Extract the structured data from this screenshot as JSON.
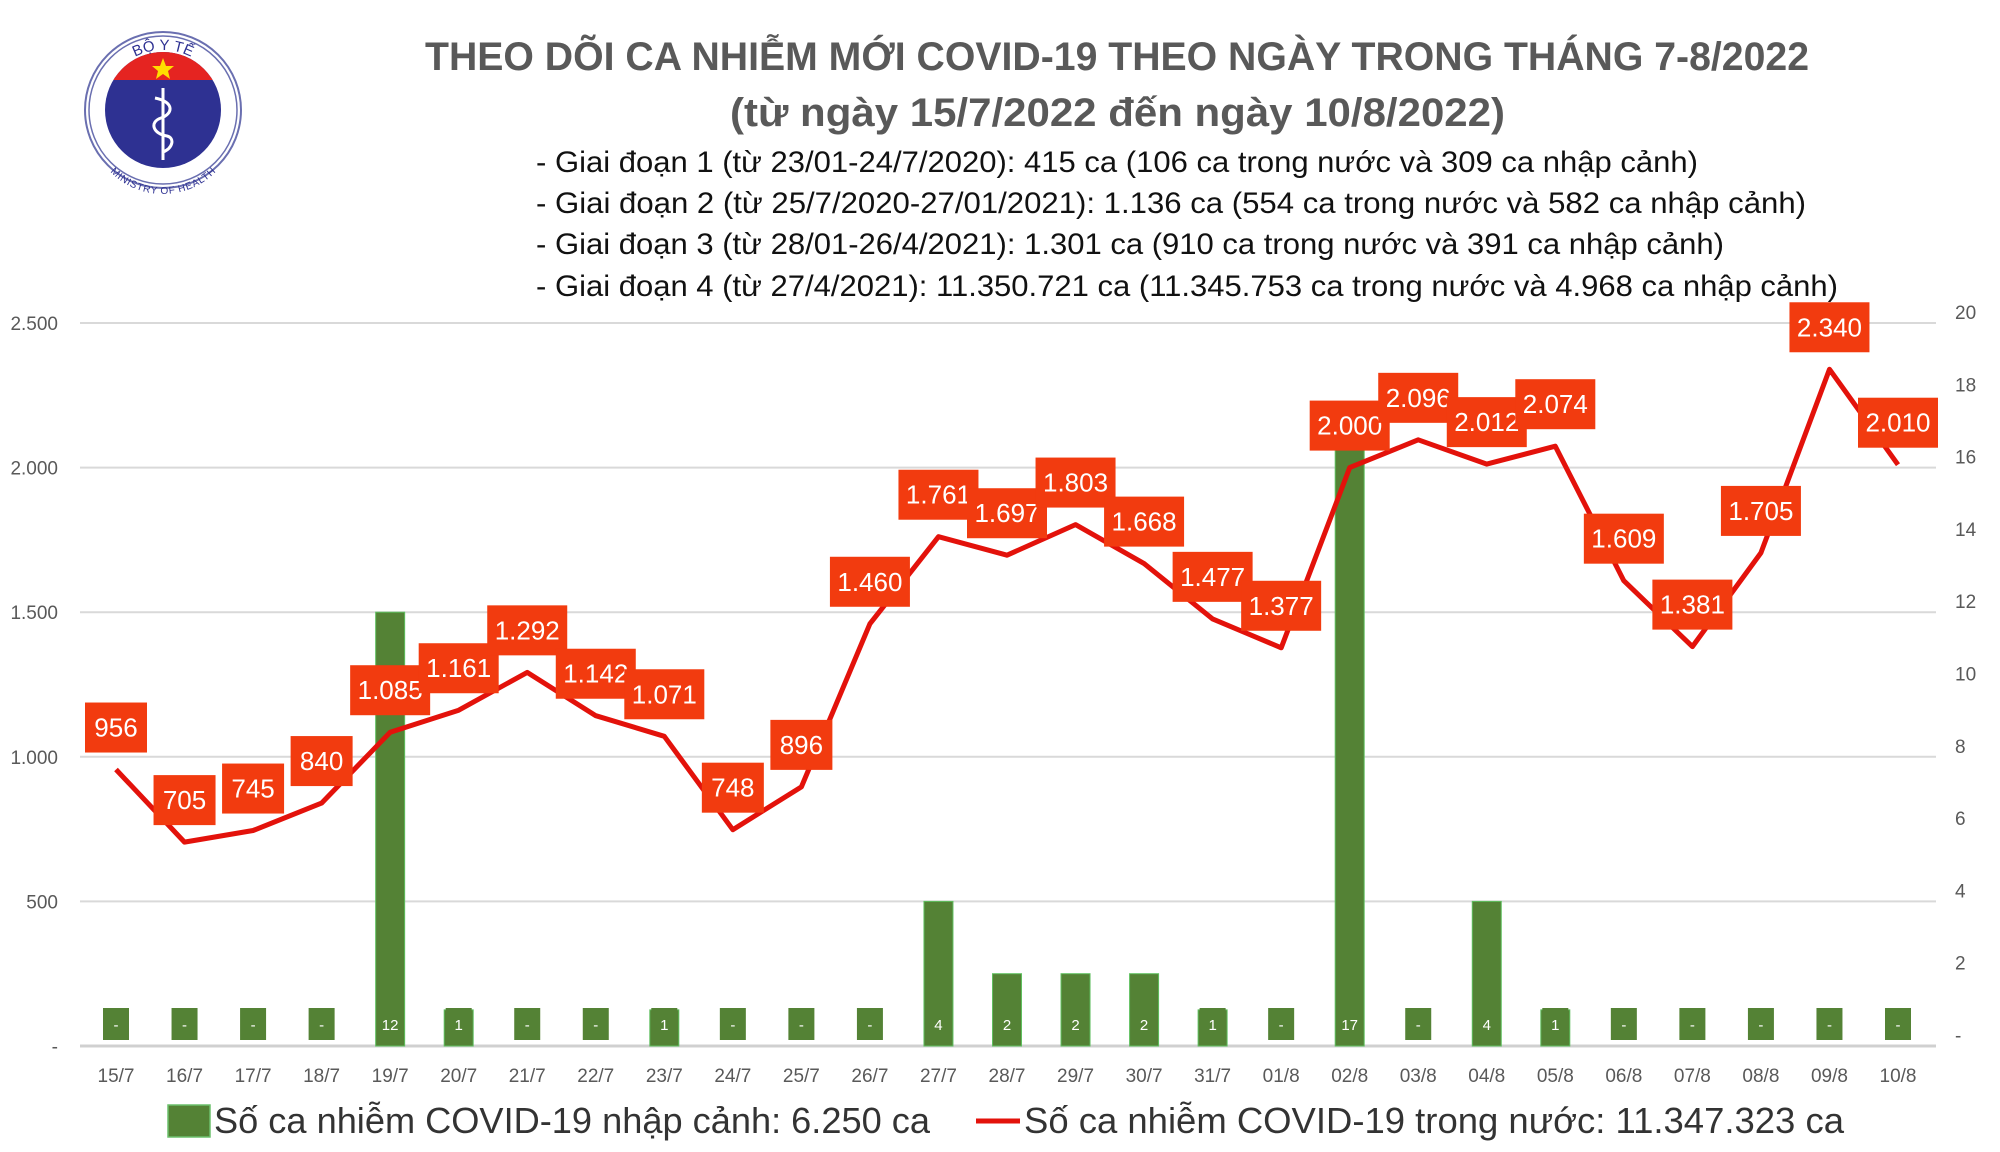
{
  "logo": {
    "top_text": "BỘ Y TẾ",
    "bottom_text": "MINISTRY OF HEALTH"
  },
  "chart_data": {
    "type": "bar+line",
    "title": "THEO DÕI CA NHIỄM MỚI COVID-19 THEO NGÀY TRONG THÁNG 7-8/2022",
    "subtitle": "(từ ngày 15/7/2022 đến ngày 10/8/2022)",
    "annotations": [
      "- Giai đoạn 1 (từ 23/01-24/7/2020): 415 ca (106 ca trong nước và 309 ca nhập cảnh)",
      "- Giai đoạn 2 (từ 25/7/2020-27/01/2021): 1.136 ca (554 ca trong nước và 582 ca nhập cảnh)",
      "- Giai đoạn 3 (từ 28/01-26/4/2021): 1.301 ca (910 ca trong nước và 391 ca nhập cảnh)",
      "- Giai đoạn 4 (từ 27/4/2021): 11.350.721 ca (11.345.753 ca trong nước và 4.968 ca nhập cảnh)"
    ],
    "categories": [
      "15/7",
      "16/7",
      "17/7",
      "18/7",
      "19/7",
      "20/7",
      "21/7",
      "22/7",
      "23/7",
      "24/7",
      "25/7",
      "26/7",
      "27/7",
      "28/7",
      "29/7",
      "30/7",
      "31/7",
      "01/8",
      "02/8",
      "03/8",
      "04/8",
      "05/8",
      "06/8",
      "07/8",
      "08/8",
      "09/8",
      "10/8"
    ],
    "series": [
      {
        "name": "Số ca nhiễm COVID-19 nhập cảnh: 6.250 ca",
        "type": "bar",
        "axis": "right",
        "color": "#548235",
        "values": [
          0,
          0,
          0,
          0,
          12,
          1,
          0,
          0,
          1,
          0,
          0,
          0,
          4,
          2,
          2,
          2,
          1,
          0,
          17,
          0,
          4,
          1,
          0,
          0,
          0,
          0,
          0
        ],
        "labels": [
          "-",
          "-",
          "-",
          "-",
          "12",
          "1",
          "-",
          "-",
          "1",
          "-",
          "-",
          "-",
          "4",
          "2",
          "2",
          "2",
          "1",
          "-",
          "17",
          "-",
          "4",
          "1",
          "-",
          "-",
          "-",
          "-",
          "-"
        ]
      },
      {
        "name": "Số ca nhiễm COVID-19 trong nước: 11.347.323 ca",
        "type": "line",
        "axis": "left",
        "color": "#e3120b",
        "label_color": "#f23b0f",
        "values": [
          956,
          705,
          745,
          840,
          1085,
          1161,
          1292,
          1142,
          1071,
          748,
          896,
          1460,
          1761,
          1697,
          1803,
          1668,
          1477,
          1377,
          2000,
          2096,
          2012,
          2074,
          1609,
          1381,
          1705,
          2340,
          2010
        ],
        "labels": [
          "956",
          "705",
          "745",
          "840",
          "1.085",
          "1.161",
          "1.292",
          "1.142",
          "1.071",
          "748",
          "896",
          "1.460",
          "1.761",
          "1.697",
          "1.803",
          "1.668",
          "1.477",
          "1.377",
          "2.000",
          "2.096",
          "2.012",
          "2.074",
          "1.609",
          "1.381",
          "1.705",
          "2.340",
          "2.010"
        ]
      }
    ],
    "y_left": {
      "ylim": [
        0,
        2500
      ],
      "ticks": [
        0,
        500,
        1000,
        1500,
        2000,
        2500
      ],
      "tick_labels": [
        "-",
        "500",
        "1.000",
        "1.500",
        "2.000",
        "2.500"
      ]
    },
    "y_right": {
      "ylim": [
        0,
        20
      ],
      "ticks": [
        0,
        2,
        4,
        6,
        8,
        10,
        12,
        14,
        16,
        18,
        20
      ],
      "tick_labels": [
        "-",
        "2",
        "4",
        "6",
        "8",
        "10",
        "12",
        "14",
        "16",
        "18",
        "20"
      ]
    },
    "grid": true,
    "legend": "bottom"
  }
}
